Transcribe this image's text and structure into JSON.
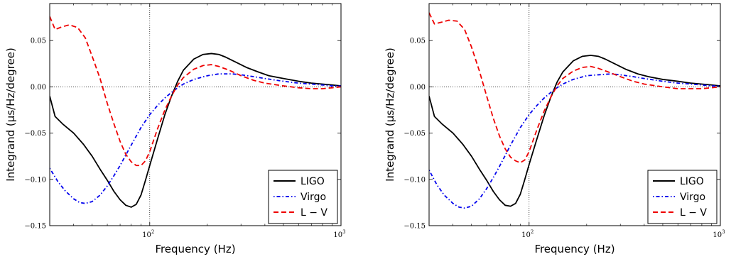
{
  "chart_data": [
    {
      "type": "line",
      "xlabel": "Frequency (Hz)",
      "ylabel": "Integrand (μs/Hz/degree)",
      "x_scale": "log",
      "xlim": [
        30,
        1000
      ],
      "ylim": [
        -0.15,
        0.09
      ],
      "x_ticks": [
        100,
        1000
      ],
      "x_tick_labels": [
        {
          "base": "10",
          "exp": "2"
        },
        {
          "base": "10",
          "exp": "3"
        }
      ],
      "y_ticks": [
        0.05,
        0.0,
        -0.05,
        -0.1,
        -0.15
      ],
      "y_tick_labels": [
        "0.05",
        "0.00",
        "−0.05",
        "−0.10",
        "−0.15"
      ],
      "grid": "dotted lines at x=100 and y=0",
      "legend_position": "lower-right",
      "series": [
        {
          "name": "LIGO",
          "color": "#000000",
          "style": "solid",
          "x": [
            30,
            32,
            35,
            40,
            45,
            50,
            55,
            60,
            65,
            70,
            75,
            80,
            85,
            90,
            95,
            100,
            110,
            120,
            130,
            140,
            150,
            170,
            190,
            210,
            230,
            250,
            280,
            320,
            370,
            420,
            500,
            600,
            700,
            800,
            900,
            1000
          ],
          "y": [
            -0.01,
            -0.032,
            -0.04,
            -0.05,
            -0.062,
            -0.075,
            -0.089,
            -0.101,
            -0.113,
            -0.122,
            -0.128,
            -0.13,
            -0.127,
            -0.117,
            -0.101,
            -0.085,
            -0.056,
            -0.03,
            -0.01,
            0.006,
            0.018,
            0.03,
            0.035,
            0.036,
            0.035,
            0.032,
            0.027,
            0.021,
            0.016,
            0.012,
            0.009,
            0.006,
            0.004,
            0.003,
            0.002,
            0.001
          ]
        },
        {
          "name": "Virgo",
          "color": "#0000ee",
          "style": "dashdot",
          "x": [
            30,
            33,
            36,
            40,
            43,
            46,
            50,
            55,
            60,
            65,
            70,
            80,
            90,
            100,
            110,
            120,
            130,
            140,
            150,
            170,
            200,
            230,
            270,
            300,
            350,
            400,
            500,
            600,
            700,
            800,
            900,
            1000
          ],
          "y": [
            -0.088,
            -0.102,
            -0.112,
            -0.121,
            -0.125,
            -0.126,
            -0.124,
            -0.117,
            -0.107,
            -0.096,
            -0.085,
            -0.063,
            -0.044,
            -0.03,
            -0.02,
            -0.012,
            -0.006,
            -0.001,
            0.003,
            0.008,
            0.012,
            0.014,
            0.014,
            0.013,
            0.011,
            0.009,
            0.006,
            0.004,
            0.003,
            0.002,
            0.001,
            0.001
          ]
        },
        {
          "name": "L − V",
          "color": "#ee0000",
          "style": "dashed",
          "x": [
            30,
            32,
            35,
            38,
            42,
            46,
            50,
            55,
            60,
            65,
            70,
            75,
            80,
            85,
            90,
            95,
            100,
            110,
            120,
            130,
            140,
            150,
            170,
            190,
            210,
            230,
            260,
            300,
            350,
            400,
            500,
            600,
            700,
            800,
            900,
            1000
          ],
          "y": [
            0.076,
            0.062,
            0.065,
            0.067,
            0.064,
            0.053,
            0.033,
            0.009,
            -0.018,
            -0.04,
            -0.059,
            -0.073,
            -0.081,
            -0.085,
            -0.085,
            -0.08,
            -0.07,
            -0.045,
            -0.025,
            -0.01,
            0.002,
            0.01,
            0.019,
            0.023,
            0.024,
            0.022,
            0.018,
            0.012,
            0.007,
            0.004,
            0.001,
            -0.001,
            -0.002,
            -0.002,
            -0.001,
            0.0
          ]
        }
      ]
    },
    {
      "type": "line",
      "xlabel": "Frequency (Hz)",
      "ylabel": "Integrand (μs/Hz/degree)",
      "x_scale": "log",
      "xlim": [
        30,
        1000
      ],
      "ylim": [
        -0.15,
        0.09
      ],
      "x_ticks": [
        100,
        1000
      ],
      "x_tick_labels": [
        {
          "base": "10",
          "exp": "2"
        },
        {
          "base": "10",
          "exp": "3"
        }
      ],
      "y_ticks": [
        0.05,
        0.0,
        -0.05,
        -0.1,
        -0.15
      ],
      "y_tick_labels": [
        "0.05",
        "0.00",
        "−0.05",
        "−0.10",
        "−0.15"
      ],
      "grid": "dotted lines at x=100 and y=0",
      "legend_position": "lower-right",
      "series": [
        {
          "name": "LIGO",
          "color": "#000000",
          "style": "solid",
          "x": [
            30,
            32,
            35,
            40,
            45,
            50,
            55,
            60,
            65,
            70,
            75,
            80,
            85,
            90,
            95,
            100,
            110,
            120,
            130,
            140,
            150,
            170,
            190,
            210,
            230,
            250,
            280,
            320,
            370,
            420,
            500,
            600,
            700,
            800,
            900,
            1000
          ],
          "y": [
            -0.01,
            -0.032,
            -0.04,
            -0.05,
            -0.062,
            -0.075,
            -0.089,
            -0.101,
            -0.113,
            -0.122,
            -0.128,
            -0.129,
            -0.126,
            -0.116,
            -0.1,
            -0.084,
            -0.056,
            -0.031,
            -0.011,
            0.005,
            0.016,
            0.028,
            0.033,
            0.034,
            0.033,
            0.03,
            0.025,
            0.019,
            0.014,
            0.011,
            0.008,
            0.006,
            0.004,
            0.003,
            0.002,
            0.001
          ]
        },
        {
          "name": "Virgo",
          "color": "#0000ee",
          "style": "dashdot",
          "x": [
            30,
            33,
            36,
            40,
            43,
            46,
            50,
            55,
            60,
            65,
            70,
            80,
            90,
            100,
            110,
            120,
            130,
            140,
            150,
            170,
            200,
            230,
            270,
            300,
            350,
            400,
            500,
            600,
            700,
            800,
            900,
            1000
          ],
          "y": [
            -0.09,
            -0.106,
            -0.117,
            -0.126,
            -0.13,
            -0.131,
            -0.129,
            -0.121,
            -0.11,
            -0.098,
            -0.086,
            -0.063,
            -0.044,
            -0.03,
            -0.02,
            -0.012,
            -0.006,
            -0.001,
            0.003,
            0.008,
            0.012,
            0.013,
            0.014,
            0.013,
            0.011,
            0.009,
            0.006,
            0.004,
            0.003,
            0.002,
            0.001,
            0.001
          ]
        },
        {
          "name": "L − V",
          "color": "#ee0000",
          "style": "dashed",
          "x": [
            30,
            32,
            35,
            38,
            42,
            46,
            50,
            55,
            60,
            65,
            70,
            75,
            80,
            85,
            90,
            95,
            100,
            110,
            120,
            130,
            140,
            150,
            170,
            190,
            210,
            230,
            260,
            300,
            350,
            400,
            500,
            600,
            700,
            800,
            900,
            1000
          ],
          "y": [
            0.08,
            0.068,
            0.07,
            0.072,
            0.071,
            0.062,
            0.043,
            0.017,
            -0.01,
            -0.034,
            -0.053,
            -0.067,
            -0.076,
            -0.08,
            -0.082,
            -0.079,
            -0.07,
            -0.046,
            -0.026,
            -0.011,
            0.001,
            0.009,
            0.017,
            0.021,
            0.022,
            0.02,
            0.016,
            0.011,
            0.006,
            0.003,
            0.0,
            -0.002,
            -0.002,
            -0.002,
            -0.001,
            0.0
          ]
        }
      ]
    }
  ]
}
